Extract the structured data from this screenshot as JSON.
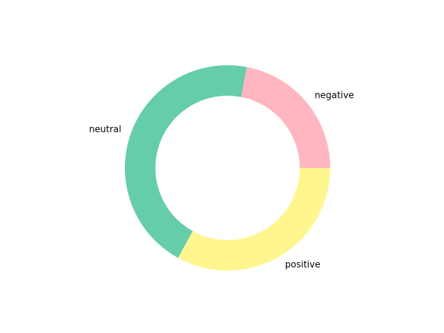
{
  "chart_data": {
    "type": "pie",
    "donut": true,
    "title": "",
    "labels": [
      "negative",
      "neutral",
      "positive"
    ],
    "values": [
      22,
      45,
      33
    ],
    "colors": [
      "#ffb6c1",
      "#66cdaa",
      "#fff68f"
    ],
    "start_angle_deg": 0,
    "direction": "counterclockwise",
    "legend": "none"
  }
}
